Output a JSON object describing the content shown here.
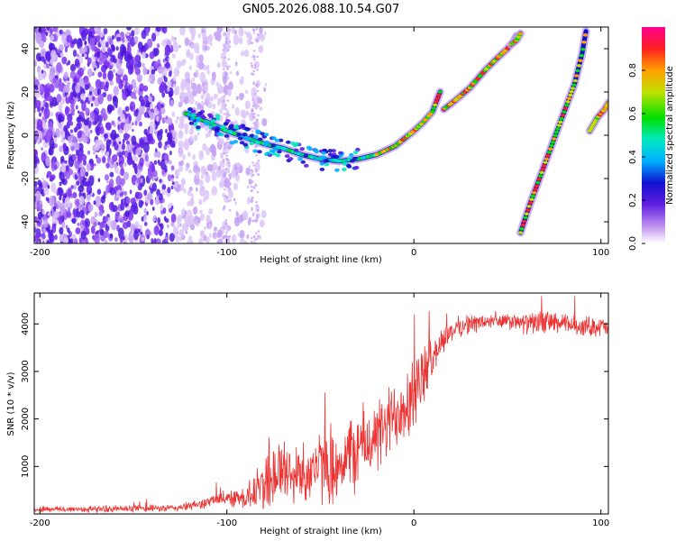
{
  "title": "GN05.2026.088.10.54.G07",
  "chart_data": [
    {
      "type": "heatmap",
      "xlabel": "Height of straight line (km)",
      "ylabel": "Frequency (Hz)",
      "xlim": [
        -203,
        104
      ],
      "ylim": [
        -50,
        50
      ],
      "x_ticks": [
        "-200",
        "-100",
        "0",
        "100"
      ],
      "y_ticks": [
        "-40",
        "-20",
        "0",
        "20",
        "40"
      ],
      "colorbar": {
        "label": "Normalized spectral amplitude",
        "ticks": [
          "0.0",
          "0.2",
          "0.4",
          "0.6",
          "0.8"
        ],
        "colors": [
          "#ffffff",
          "#b070f0",
          "#6020e0",
          "#1010d0",
          "#00b0ff",
          "#00e8c0",
          "#00e000",
          "#c0e000",
          "#ffa000",
          "#ff2020",
          "#ff00a0"
        ]
      },
      "ridges": [
        {
          "name": "main-trace",
          "x": [
            -122,
            -110,
            -100,
            -90,
            -80,
            -70,
            -60,
            -50,
            -40,
            -30,
            -20,
            -10,
            0,
            5,
            10,
            14
          ],
          "y": [
            10,
            6,
            2,
            -1,
            -4,
            -6,
            -9,
            -11,
            -12,
            -11,
            -9,
            -5,
            2,
            6,
            11,
            20
          ]
        },
        {
          "name": "upper-trace",
          "x": [
            16,
            22,
            30,
            38,
            45,
            50,
            53,
            55
          ],
          "y": [
            12,
            16,
            22,
            30,
            36,
            40,
            43,
            46
          ]
        },
        {
          "name": "upper-fragment",
          "x": [
            52,
            55,
            57
          ],
          "y": [
            42,
            44,
            47
          ]
        },
        {
          "name": "steep-trace",
          "x": [
            57,
            62,
            68,
            74,
            80,
            86,
            90,
            92
          ],
          "y": [
            -45,
            -32,
            -18,
            -4,
            10,
            24,
            38,
            48
          ]
        },
        {
          "name": "right-trace",
          "x": [
            94,
            98,
            102,
            104
          ],
          "y": [
            2,
            8,
            12,
            15
          ]
        }
      ]
    },
    {
      "type": "line",
      "xlabel": "Height of straight line (km)",
      "ylabel": "SNR (10 * v/v)",
      "xlim": [
        -203,
        104
      ],
      "ylim": [
        0,
        4650
      ],
      "x_ticks": [
        "-200",
        "-100",
        "0",
        "100"
      ],
      "y_ticks": [
        "1000",
        "2000",
        "3000",
        "4000"
      ],
      "series": [
        {
          "name": "SNR",
          "color": "#ee3333",
          "envelope_x": [
            -203,
            -180,
            -150,
            -130,
            -120,
            -110,
            -100,
            -90,
            -85,
            -80,
            -75,
            -70,
            -65,
            -60,
            -55,
            -50,
            -45,
            -40,
            -35,
            -30,
            -25,
            -20,
            -15,
            -10,
            -5,
            0,
            5,
            10,
            15,
            20,
            25,
            30,
            40,
            50,
            60,
            70,
            80,
            90,
            100,
            104
          ],
          "envelope_mid": [
            100,
            100,
            110,
            120,
            160,
            250,
            350,
            350,
            450,
            700,
            900,
            900,
            800,
            850,
            950,
            1000,
            900,
            1100,
            1200,
            1400,
            1500,
            1600,
            1800,
            2100,
            2400,
            2500,
            2900,
            3300,
            3650,
            3850,
            3950,
            4000,
            4050,
            4050,
            4000,
            4050,
            4000,
            3950,
            3950,
            3900
          ],
          "envelope_spread": [
            80,
            80,
            90,
            90,
            110,
            140,
            200,
            300,
            450,
            800,
            1200,
            900,
            700,
            800,
            800,
            900,
            800,
            900,
            1000,
            1000,
            1000,
            900,
            900,
            1000,
            1000,
            1200,
            700,
            500,
            350,
            300,
            250,
            250,
            200,
            200,
            250,
            300,
            250,
            250,
            250,
            250
          ]
        }
      ]
    }
  ]
}
